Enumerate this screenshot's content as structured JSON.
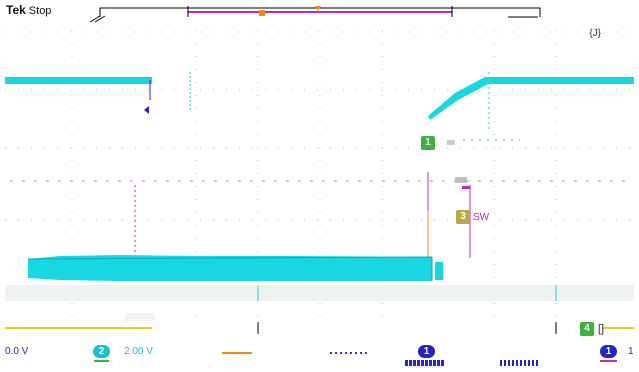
{
  "header": {
    "brand": "Tek",
    "acquisition_status": "Stop",
    "top_right_readout": "{J}"
  },
  "markers": {
    "channel_1": "1",
    "channel_3": "3",
    "channel_3_label": "SW",
    "channel_4": "4"
  },
  "footer": {
    "left_readout": "0.0 V",
    "ch2_badge": "2",
    "ch2_scale": "2.00 V",
    "ch1_badge_center": "1",
    "ch1_badge_right": "1",
    "right_edge_digit": "1"
  },
  "colors": {
    "ch1_cyan": "#18d7e0",
    "ch2_blue": "#2424c8",
    "ch3_magenta": "#c02bbd",
    "ch4_yellow": "#e8d21a",
    "trigger_orange": "#f08a18",
    "marker_green": "#3cb43c"
  }
}
